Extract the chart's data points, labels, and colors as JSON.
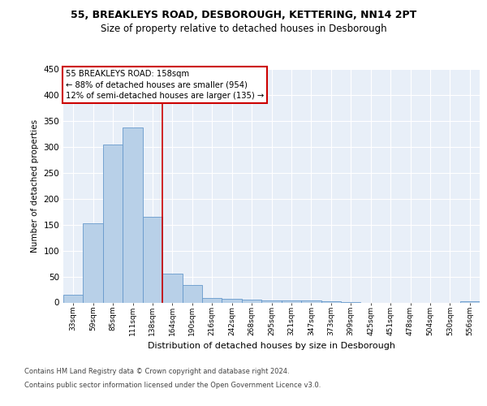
{
  "title1": "55, BREAKLEYS ROAD, DESBOROUGH, KETTERING, NN14 2PT",
  "title2": "Size of property relative to detached houses in Desborough",
  "xlabel": "Distribution of detached houses by size in Desborough",
  "ylabel": "Number of detached properties",
  "categories": [
    "33sqm",
    "59sqm",
    "85sqm",
    "111sqm",
    "138sqm",
    "164sqm",
    "190sqm",
    "216sqm",
    "242sqm",
    "268sqm",
    "295sqm",
    "321sqm",
    "347sqm",
    "373sqm",
    "399sqm",
    "425sqm",
    "451sqm",
    "478sqm",
    "504sqm",
    "530sqm",
    "556sqm"
  ],
  "values": [
    15,
    153,
    305,
    338,
    165,
    55,
    33,
    9,
    7,
    5,
    4,
    4,
    4,
    2,
    1,
    0,
    0,
    0,
    0,
    0,
    3
  ],
  "bar_color": "#b8d0e8",
  "bar_edge_color": "#6699cc",
  "vline_x": 4.5,
  "vline_color": "#cc0000",
  "annotation_line1": "55 BREAKLEYS ROAD: 158sqm",
  "annotation_line2": "← 88% of detached houses are smaller (954)",
  "annotation_line3": "12% of semi-detached houses are larger (135) →",
  "annotation_box_edgecolor": "#cc0000",
  "footer1": "Contains HM Land Registry data © Crown copyright and database right 2024.",
  "footer2": "Contains public sector information licensed under the Open Government Licence v3.0.",
  "ylim": [
    0,
    450
  ],
  "yticks": [
    0,
    50,
    100,
    150,
    200,
    250,
    300,
    350,
    400,
    450
  ],
  "bg_color": "#e8eff8",
  "fig_bg_color": "#ffffff",
  "grid_color": "#ffffff"
}
